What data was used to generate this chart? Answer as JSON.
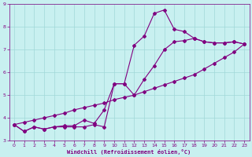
{
  "xlabel": "Windchill (Refroidissement éolien,°C)",
  "bg_color": "#c8f0f0",
  "grid_color": "#a0d8d8",
  "line_color": "#800080",
  "xlim": [
    -0.5,
    23.5
  ],
  "ylim": [
    3.0,
    9.0
  ],
  "xticks": [
    0,
    1,
    2,
    3,
    4,
    5,
    6,
    7,
    8,
    9,
    10,
    11,
    12,
    13,
    14,
    15,
    16,
    17,
    18,
    19,
    20,
    21,
    22,
    23
  ],
  "yticks": [
    3,
    4,
    5,
    6,
    7,
    8,
    9
  ],
  "line1_x": [
    0,
    1,
    2,
    3,
    4,
    5,
    6,
    7,
    8,
    9,
    10,
    11,
    12,
    13,
    14,
    15,
    16,
    17,
    18,
    19,
    20,
    21,
    22,
    23
  ],
  "line1_y": [
    3.7,
    3.4,
    3.6,
    3.5,
    3.6,
    3.6,
    3.6,
    3.6,
    3.7,
    3.6,
    5.5,
    5.5,
    7.2,
    7.6,
    8.6,
    8.75,
    7.9,
    7.8,
    7.5,
    7.35,
    7.3,
    7.3,
    7.35,
    7.25
  ],
  "line2_x": [
    0,
    1,
    2,
    3,
    4,
    5,
    6,
    7,
    8,
    9,
    10,
    11,
    12,
    13,
    14,
    15,
    16,
    17,
    18,
    19,
    20,
    21,
    22,
    23
  ],
  "line2_y": [
    3.7,
    3.4,
    3.6,
    3.5,
    3.6,
    3.65,
    3.65,
    3.9,
    3.75,
    4.35,
    5.5,
    5.5,
    5.0,
    5.7,
    6.3,
    7.0,
    7.35,
    7.4,
    7.5,
    7.35,
    7.3,
    7.3,
    7.35,
    7.25
  ],
  "line3_x": [
    0,
    1,
    2,
    3,
    4,
    5,
    6,
    7,
    8,
    9,
    10,
    11,
    12,
    13,
    14,
    15,
    16,
    17,
    18,
    19,
    20,
    21,
    22,
    23
  ],
  "line3_y": [
    3.7,
    3.8,
    3.9,
    4.0,
    4.1,
    4.2,
    4.35,
    4.45,
    4.55,
    4.65,
    4.8,
    4.9,
    5.0,
    5.15,
    5.3,
    5.45,
    5.6,
    5.75,
    5.9,
    6.15,
    6.4,
    6.65,
    6.9,
    7.25
  ]
}
